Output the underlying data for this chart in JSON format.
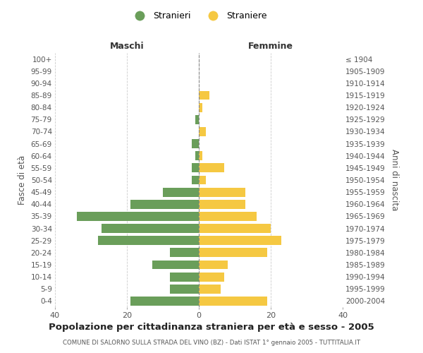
{
  "age_groups_bottom_to_top": [
    "0-4",
    "5-9",
    "10-14",
    "15-19",
    "20-24",
    "25-29",
    "30-34",
    "35-39",
    "40-44",
    "45-49",
    "50-54",
    "55-59",
    "60-64",
    "65-69",
    "70-74",
    "75-79",
    "80-84",
    "85-89",
    "90-94",
    "95-99",
    "100+"
  ],
  "birth_years_bottom_to_top": [
    "2000-2004",
    "1995-1999",
    "1990-1994",
    "1985-1989",
    "1980-1984",
    "1975-1979",
    "1970-1974",
    "1965-1969",
    "1960-1964",
    "1955-1959",
    "1950-1954",
    "1945-1949",
    "1940-1944",
    "1935-1939",
    "1930-1934",
    "1925-1929",
    "1920-1924",
    "1915-1919",
    "1910-1914",
    "1905-1909",
    "≤ 1904"
  ],
  "maschi_bottom_to_top": [
    19,
    8,
    8,
    13,
    8,
    28,
    27,
    34,
    19,
    10,
    2,
    2,
    1,
    2,
    0,
    1,
    0,
    0,
    0,
    0,
    0
  ],
  "femmine_bottom_to_top": [
    19,
    6,
    7,
    8,
    19,
    23,
    20,
    16,
    13,
    13,
    2,
    7,
    1,
    0,
    2,
    0,
    1,
    3,
    0,
    0,
    0
  ],
  "maschi_color": "#6a9e5a",
  "femmine_color": "#f5c842",
  "title": "Popolazione per cittadinanza straniera per età e sesso - 2005",
  "subtitle": "COMUNE DI SALORNO SULLA STRADA DEL VINO (BZ) - Dati ISTAT 1° gennaio 2005 - TUTTITALIA.IT",
  "header_left": "Maschi",
  "header_right": "Femmine",
  "ylabel_left": "Fasce di età",
  "ylabel_right": "Anni di nascita",
  "legend_stranieri": "Stranieri",
  "legend_straniere": "Straniere",
  "xlim": 40,
  "background_color": "#ffffff",
  "grid_color": "#cccccc"
}
